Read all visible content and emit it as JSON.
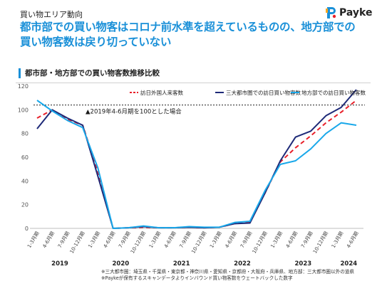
{
  "header": {
    "category": "買い物エリア動向",
    "headline": "都市部での買い物客はコロナ前水準を超えているものの、地方部での買い物客数は戻り切っていない",
    "section_title": "都市部・地方部での買い物客数推移比較",
    "logo_text": "Payke"
  },
  "notes": [
    "※三大都市圏：埼玉県・千葉県・東京都・神奈川県・愛知県・京都府・大阪府・兵庫県、地方部：三大都市圏以外の道県",
    "※Paykeが保有するスキャンデータよりインバウンド買い物客数をウェートバックした数字"
  ],
  "colors": {
    "accent": "#1a90d8",
    "series_inbound": "#e8202a",
    "series_metro": "#1e2a78",
    "series_rural": "#19a8ea"
  },
  "chart_data": {
    "type": "line",
    "x": [
      "1-3月期",
      "4-6月期",
      "7-9月期",
      "10-12月期",
      "1-3月期",
      "4-6月期",
      "7-9月期",
      "10-12月期",
      "1-3月期",
      "4-6月期",
      "7-9月期",
      "10-12月期",
      "1-3月期",
      "4-6月期",
      "7-9月期",
      "10-12月期",
      "1-3月期",
      "4-6月期",
      "7-9月期",
      "10-12月期",
      "1-3月期",
      "4-6月期"
    ],
    "years": [
      {
        "label": "2019",
        "start": 0,
        "end": 3
      },
      {
        "label": "2020",
        "start": 4,
        "end": 7
      },
      {
        "label": "2021",
        "start": 8,
        "end": 11
      },
      {
        "label": "2022",
        "start": 12,
        "end": 15
      },
      {
        "label": "2023",
        "start": 16,
        "end": 19
      },
      {
        "label": "2024",
        "start": 20,
        "end": 21
      }
    ],
    "series": [
      {
        "name": "訪日外国人来客数",
        "style": "dashed",
        "color": "#e8202a",
        "values": [
          93,
          100,
          92,
          87,
          48,
          0,
          0.5,
          1,
          0.5,
          0.5,
          1,
          0.5,
          1,
          4,
          5,
          30,
          56,
          68,
          78,
          89,
          98,
          108
        ]
      },
      {
        "name": "三大都市圏での訪日買い物客数",
        "style": "solid",
        "color": "#1e2a78",
        "values": [
          84,
          100,
          93,
          87,
          44,
          0,
          0.5,
          1.5,
          0.5,
          0.5,
          1,
          0.5,
          1,
          4,
          4.5,
          30,
          57,
          77,
          82,
          95,
          102,
          117
        ]
      },
      {
        "name": "地方部での訪日買い物客数",
        "style": "solid",
        "color": "#19a8ea",
        "values": [
          108,
          99,
          91,
          85,
          51,
          0,
          0.5,
          2,
          0.5,
          0.5,
          1.5,
          1,
          1,
          5,
          6,
          32,
          54,
          57,
          67,
          80,
          89,
          87
        ]
      }
    ],
    "ylim": [
      0,
      120
    ],
    "yticks": [
      0,
      20,
      40,
      60,
      80,
      100,
      120
    ],
    "reference_line": {
      "value": 104,
      "label": "▲2019年4-6月期を100とした場合"
    },
    "grid": false,
    "legend": "top"
  }
}
